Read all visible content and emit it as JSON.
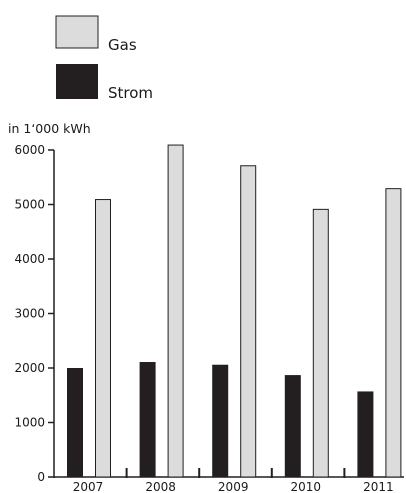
{
  "chart_data": {
    "type": "bar",
    "title": "",
    "xlabel": "",
    "ylabel": "in 1‘000 kWh",
    "categories": [
      "2007",
      "2008",
      "2009",
      "2010",
      "2011"
    ],
    "series": [
      {
        "name": "Strom",
        "color": "#231f20",
        "values": [
          2000,
          2110,
          2060,
          1870,
          1570
        ]
      },
      {
        "name": "Gas",
        "color": "#dcdcdc",
        "values": [
          5100,
          6100,
          5720,
          4920,
          5300
        ]
      }
    ],
    "ylim": [
      0,
      6000
    ],
    "yticks": [
      0,
      1000,
      2000,
      3000,
      4000,
      5000,
      6000
    ],
    "grid": false,
    "legend_position": "top-left"
  }
}
